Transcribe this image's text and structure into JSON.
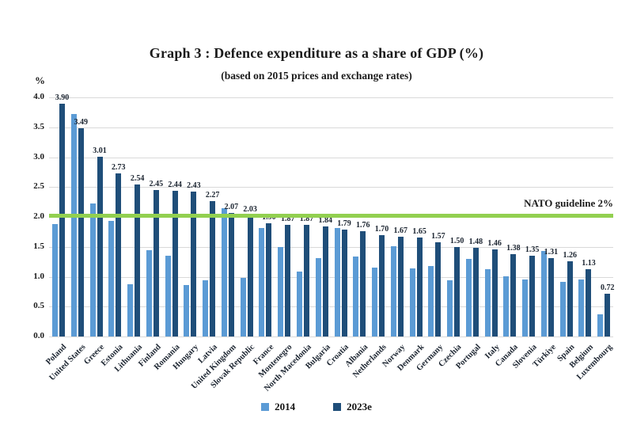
{
  "figure": {
    "title": "Graph 3 : Defence expenditure as a share of GDP (%)",
    "subtitle": "(based on 2015 prices and exchange rates)"
  },
  "guideline": {
    "label": "NATO guideline 2%",
    "value": 2.0,
    "color": "#92d050"
  },
  "colors": {
    "series_2014": "#5b9bd5",
    "series_2023e": "#1f4e79",
    "gridline": "#d9d9d9",
    "text": "#1b2430"
  },
  "chart_data": {
    "type": "bar",
    "title": "Graph 3 : Defence expenditure as a share of GDP (%)",
    "subtitle": "(based on 2015 prices and exchange rates)",
    "ylabel": "%",
    "xlabel": "",
    "ylim": [
      0,
      4.0
    ],
    "ytick_step": 0.5,
    "yticks": [
      "0.0",
      "0.5",
      "1.0",
      "1.5",
      "2.0",
      "2.5",
      "3.0",
      "3.5",
      "4.0"
    ],
    "grid": true,
    "legend_position": "bottom",
    "data_label_series": "2023e",
    "annotation": {
      "text": "NATO guideline 2%",
      "y": 2.0
    },
    "categories": [
      "Poland",
      "United States",
      "Greece",
      "Estonia",
      "Lithuania",
      "Finland",
      "Romania",
      "Hungary",
      "Latvia",
      "United Kingdom",
      "Slovak Republic",
      "France",
      "Montenegro",
      "North Macedonia",
      "Bulgaria",
      "Croatia",
      "Albania",
      "Netherlands",
      "Norway",
      "Denmark",
      "Germany",
      "Czechia",
      "Portugal",
      "Italy",
      "Canada",
      "Slovenia",
      "Türkiye",
      "Spain",
      "Belgium",
      "Luxembourg"
    ],
    "series": [
      {
        "name": "2014",
        "color": "#5b9bd5",
        "values": [
          1.88,
          3.72,
          2.22,
          1.93,
          0.88,
          1.45,
          1.35,
          0.86,
          0.94,
          2.14,
          0.98,
          1.81,
          1.5,
          1.09,
          1.31,
          1.81,
          1.34,
          1.15,
          1.51,
          1.14,
          1.18,
          0.94,
          1.3,
          1.13,
          1.01,
          0.96,
          1.43,
          0.91,
          0.96,
          0.37
        ]
      },
      {
        "name": "2023e",
        "color": "#1f4e79",
        "values": [
          3.9,
          3.49,
          3.01,
          2.73,
          2.54,
          2.45,
          2.44,
          2.43,
          2.27,
          2.07,
          2.03,
          1.9,
          1.87,
          1.87,
          1.84,
          1.79,
          1.76,
          1.7,
          1.67,
          1.65,
          1.57,
          1.5,
          1.48,
          1.46,
          1.38,
          1.35,
          1.31,
          1.26,
          1.13,
          0.72
        ]
      }
    ]
  }
}
